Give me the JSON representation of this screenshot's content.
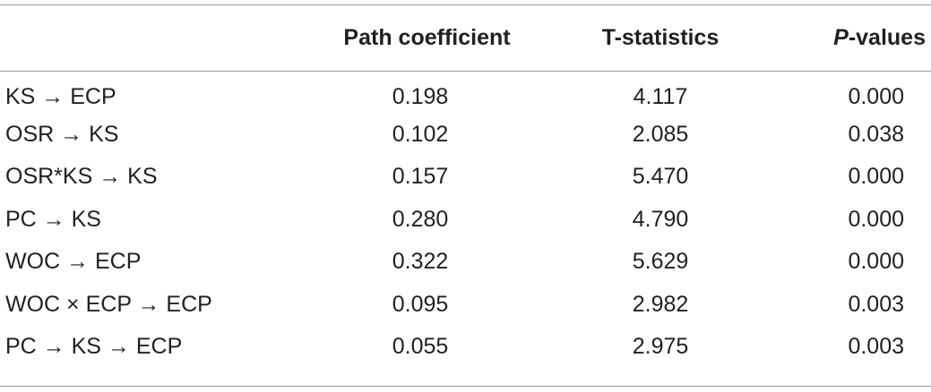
{
  "headers": {
    "col0": "",
    "col1": "Path coefficient",
    "col2": "T-statistics",
    "col3_italic": "P",
    "col3_rest": "-values"
  },
  "rows": [
    {
      "label": "KS → ECP",
      "path": "0.198",
      "t": "4.117",
      "p": "0.000"
    },
    {
      "label": "OSR → KS",
      "path": "0.102",
      "t": "2.085",
      "p": "0.038"
    },
    {
      "label": "OSR*KS → KS",
      "path": "0.157",
      "t": "5.470",
      "p": "0.000"
    },
    {
      "label": "PC → KS",
      "path": "0.280",
      "t": "4.790",
      "p": "0.000"
    },
    {
      "label": "WOC → ECP",
      "path": "0.322",
      "t": "5.629",
      "p": "0.000"
    },
    {
      "label": "WOC × ECP → ECP",
      "path": "0.095",
      "t": "2.982",
      "p": "0.003"
    },
    {
      "label": "PC → KS → ECP",
      "path": "0.055",
      "t": "2.975",
      "p": "0.003"
    }
  ]
}
